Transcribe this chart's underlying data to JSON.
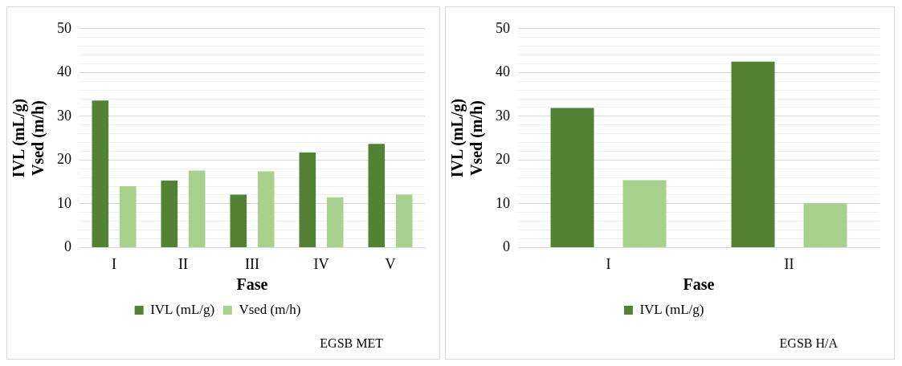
{
  "chart_data": [
    {
      "type": "bar",
      "xlabel": "Fase",
      "ylabel": "IVL (mL/g)\nVsed (m/h)",
      "categories": [
        "I",
        "II",
        "III",
        "IV",
        "V"
      ],
      "series": [
        {
          "name": "IVL (mL/g)",
          "color": "#548235",
          "values": [
            33.6,
            15.3,
            12.1,
            21.7,
            23.7
          ]
        },
        {
          "name": "Vsed (m/h)",
          "color": "#a9d18e",
          "values": [
            14.0,
            17.6,
            17.4,
            11.5,
            12.1
          ]
        }
      ],
      "ylim": [
        0,
        50
      ],
      "yticks": [
        0,
        {
          "value": 2,
          "label": null
        },
        {
          "value": 4,
          "label": null
        },
        {
          "value": 6,
          "label": null
        },
        {
          "value": 8,
          "label": null
        },
        10,
        {
          "value": 12,
          "label": null
        },
        {
          "value": 14,
          "label": null
        },
        {
          "value": 16,
          "label": null
        },
        {
          "value": 18,
          "label": null
        },
        20,
        {
          "value": 22,
          "label": null
        },
        {
          "value": 24,
          "label": null
        },
        {
          "value": 26,
          "label": null
        },
        {
          "value": 28,
          "label": null
        },
        30,
        {
          "value": 32,
          "label": null
        },
        {
          "value": 34,
          "label": null
        },
        {
          "value": 36,
          "label": null
        },
        {
          "value": 38,
          "label": null
        },
        40,
        {
          "value": 42,
          "label": null
        },
        {
          "value": 44,
          "label": null
        },
        {
          "value": 46,
          "label": null
        },
        {
          "value": 48,
          "label": null
        },
        50
      ],
      "grid": "y",
      "legend": "bottom",
      "annotations": [
        "EGSB MET"
      ]
    },
    {
      "type": "bar",
      "xlabel": "Fase",
      "ylabel": "IVL (mL/g)\nVsed (m/h)",
      "categories": [
        "I",
        "II"
      ],
      "series": [
        {
          "name": "IVL (mL/g)",
          "color": "#548235",
          "values": [
            31.9,
            42.5
          ]
        },
        {
          "color": "#a9d18e",
          "values": [
            15.4,
            10.1
          ]
        }
      ],
      "ylim": [
        0,
        50
      ],
      "yticks": [
        0,
        {
          "value": 2,
          "label": null
        },
        {
          "value": 4,
          "label": null
        },
        {
          "value": 6,
          "label": null
        },
        {
          "value": 8,
          "label": null
        },
        10,
        {
          "value": 12,
          "label": null
        },
        {
          "value": 14,
          "label": null
        },
        {
          "value": 16,
          "label": null
        },
        {
          "value": 18,
          "label": null
        },
        20,
        {
          "value": 22,
          "label": null
        },
        {
          "value": 24,
          "label": null
        },
        {
          "value": 26,
          "label": null
        },
        {
          "value": 28,
          "label": null
        },
        30,
        {
          "value": 32,
          "label": null
        },
        {
          "value": 34,
          "label": null
        },
        {
          "value": 36,
          "label": null
        },
        {
          "value": 38,
          "label": null
        },
        40,
        {
          "value": 42,
          "label": null
        },
        {
          "value": 44,
          "label": null
        },
        {
          "value": 46,
          "label": null
        },
        {
          "value": 48,
          "label": null
        },
        50
      ],
      "grid": "y",
      "legend": "bottom",
      "annotations": [
        "EGSB H/A"
      ]
    }
  ]
}
